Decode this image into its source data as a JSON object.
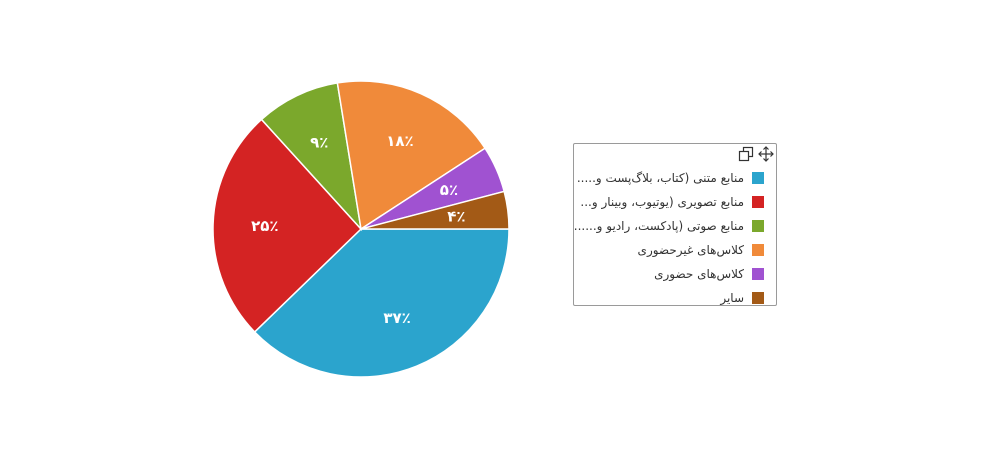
{
  "chart_data": {
    "type": "pie",
    "categories": [
      "منابع متنی (کتاب، بلاگ‌پست و.....",
      "منابع تصویری (یوتیوب، وبینار و...",
      "منابع صوتی (پادکست، رادیو و......",
      "کلاس‌های غیرحضوری",
      "کلاس‌های حضوری",
      "سایر"
    ],
    "values": [
      37,
      25,
      9,
      18,
      5,
      4
    ],
    "data_labels": [
      "۳۷٪",
      "۲۵٪",
      "۹٪",
      "۱۸٪",
      "۵٪",
      "۴٪"
    ],
    "colors": [
      "#2ba4cd",
      "#d42323",
      "#7ba82c",
      "#f08a3a",
      "#a052d1",
      "#a35a16"
    ],
    "legend_placement": "right"
  },
  "legend_tools": {
    "copy_icon": "copy-icon",
    "move_icon": "move-icon"
  }
}
